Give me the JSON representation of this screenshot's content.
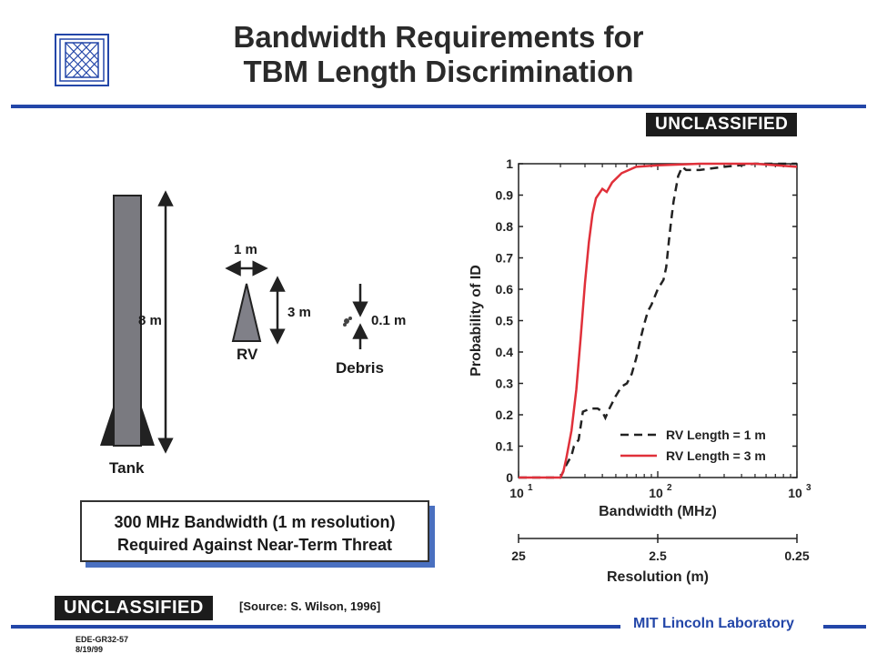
{
  "header": {
    "title_line1": "Bandwidth Requirements for",
    "title_line2": "TBM Length Discrimination"
  },
  "classification": {
    "top": "UNCLASSIFIED",
    "bottom": "UNCLASSIFIED"
  },
  "diagram": {
    "tank_label": "Tank",
    "tank_length": "8 m",
    "rv_label": "RV",
    "rv_width": "1 m",
    "rv_height": "3 m",
    "debris_label": "Debris",
    "debris_size": "0.1 m"
  },
  "callout": {
    "line1": "300 MHz Bandwidth (1 m resolution)",
    "line2": "Required Against Near-Term Threat"
  },
  "footer": {
    "source": "[Source: S. Wilson, 1996]",
    "doc_id": "EDE-GR32-57",
    "date": "8/19/99",
    "org": "MIT Lincoln Laboratory"
  },
  "colors": {
    "accent_blue": "#2346a8",
    "series_red": "#e0303a",
    "series_black": "#222222"
  },
  "chart_data": {
    "type": "line",
    "xlabel": "Bandwidth (MHz)",
    "ylabel": "Probability of ID",
    "xscale": "log",
    "xlim": [
      10,
      1000
    ],
    "ylim": [
      0,
      1
    ],
    "xtick_labels": [
      "10",
      "1",
      "10",
      "2",
      "10",
      "3"
    ],
    "ytick_labels": [
      "0",
      "0.1",
      "0.2",
      "0.3",
      "0.4",
      "0.5",
      "0.6",
      "0.7",
      "0.8",
      "0.9",
      "1"
    ],
    "secondary_axis": {
      "label": "Resolution (m)",
      "tick_labels": [
        "25",
        "2.5",
        "0.25"
      ]
    },
    "legend_position": "bottom-right",
    "series": [
      {
        "name": "RV Length = 1 m",
        "style": "dashed",
        "color": "#222222",
        "points": [
          [
            10,
            0
          ],
          [
            20,
            0
          ],
          [
            22,
            0.04
          ],
          [
            24,
            0.07
          ],
          [
            25,
            0.1
          ],
          [
            27,
            0.12
          ],
          [
            29,
            0.21
          ],
          [
            33,
            0.22
          ],
          [
            37,
            0.22
          ],
          [
            40,
            0.21
          ],
          [
            42,
            0.19
          ],
          [
            45,
            0.22
          ],
          [
            50,
            0.26
          ],
          [
            55,
            0.29
          ],
          [
            60,
            0.3
          ],
          [
            65,
            0.33
          ],
          [
            70,
            0.38
          ],
          [
            75,
            0.44
          ],
          [
            80,
            0.49
          ],
          [
            85,
            0.53
          ],
          [
            90,
            0.55
          ],
          [
            100,
            0.6
          ],
          [
            110,
            0.63
          ],
          [
            115,
            0.67
          ],
          [
            120,
            0.75
          ],
          [
            125,
            0.82
          ],
          [
            130,
            0.88
          ],
          [
            140,
            0.96
          ],
          [
            150,
            0.99
          ],
          [
            160,
            0.98
          ],
          [
            200,
            0.98
          ],
          [
            300,
            0.99
          ],
          [
            500,
            1.0
          ],
          [
            1000,
            1.0
          ]
        ]
      },
      {
        "name": "RV Length = 3 m",
        "style": "solid",
        "color": "#e0303a",
        "points": [
          [
            10,
            0
          ],
          [
            20,
            0
          ],
          [
            21,
            0.02
          ],
          [
            22,
            0.06
          ],
          [
            24,
            0.15
          ],
          [
            26,
            0.28
          ],
          [
            28,
            0.45
          ],
          [
            30,
            0.62
          ],
          [
            32,
            0.75
          ],
          [
            34,
            0.84
          ],
          [
            36,
            0.89
          ],
          [
            40,
            0.92
          ],
          [
            43,
            0.91
          ],
          [
            47,
            0.94
          ],
          [
            55,
            0.97
          ],
          [
            70,
            0.99
          ],
          [
            100,
            0.995
          ],
          [
            200,
            1.0
          ],
          [
            500,
            1.0
          ],
          [
            1000,
            0.99
          ]
        ]
      }
    ]
  }
}
